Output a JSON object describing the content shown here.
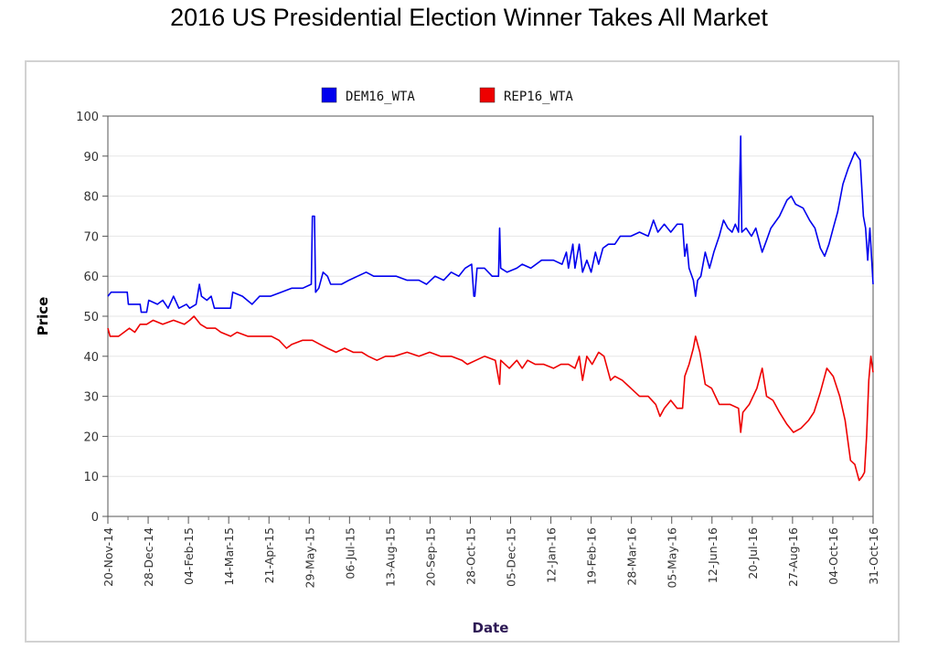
{
  "page": {
    "title": "2016 US Presidential Election Winner Takes All Market"
  },
  "chart_data": {
    "type": "line",
    "title": "2016 US Presidential Election Winner Takes All Market",
    "xlabel": "Date",
    "ylabel": "Price",
    "ylim": [
      0,
      100
    ],
    "yticks": [
      0,
      10,
      20,
      30,
      40,
      50,
      60,
      70,
      80,
      90,
      100
    ],
    "xlim": [
      "2014-11-20",
      "2016-10-31"
    ],
    "xtick_labels": [
      "20-Nov-14",
      "28-Dec-14",
      "04-Feb-15",
      "14-Mar-15",
      "21-Apr-15",
      "29-May-15",
      "06-Jul-15",
      "13-Aug-15",
      "20-Sep-15",
      "28-Oct-15",
      "05-Dec-15",
      "12-Jan-16",
      "19-Feb-16",
      "28-Mar-16",
      "05-May-16",
      "12-Jun-16",
      "20-Jul-16",
      "27-Aug-16",
      "04-Oct-16",
      "31-Oct-16"
    ],
    "grid": true,
    "legend_position": "top-center",
    "series": [
      {
        "name": "DEM16_WTA",
        "color": "#0000ee",
        "points": [
          [
            "2014-11-20",
            55
          ],
          [
            "2014-11-23",
            56
          ],
          [
            "2014-12-08",
            56
          ],
          [
            "2014-12-09",
            53
          ],
          [
            "2014-12-20",
            53
          ],
          [
            "2014-12-21",
            51
          ],
          [
            "2014-12-26",
            51
          ],
          [
            "2014-12-28",
            54
          ],
          [
            "2015-01-05",
            53
          ],
          [
            "2015-01-10",
            54
          ],
          [
            "2015-01-15",
            52
          ],
          [
            "2015-01-20",
            55
          ],
          [
            "2015-01-25",
            52
          ],
          [
            "2015-02-01",
            53
          ],
          [
            "2015-02-04",
            52
          ],
          [
            "2015-02-10",
            53
          ],
          [
            "2015-02-13",
            58
          ],
          [
            "2015-02-15",
            55
          ],
          [
            "2015-02-20",
            54
          ],
          [
            "2015-02-24",
            55
          ],
          [
            "2015-02-27",
            52
          ],
          [
            "2015-03-05",
            52
          ],
          [
            "2015-03-14",
            52
          ],
          [
            "2015-03-16",
            56
          ],
          [
            "2015-03-25",
            55
          ],
          [
            "2015-04-03",
            53
          ],
          [
            "2015-04-10",
            55
          ],
          [
            "2015-04-20",
            55
          ],
          [
            "2015-04-30",
            56
          ],
          [
            "2015-05-10",
            57
          ],
          [
            "2015-05-20",
            57
          ],
          [
            "2015-05-28",
            58
          ],
          [
            "2015-05-29",
            75
          ],
          [
            "2015-05-31",
            75
          ],
          [
            "2015-06-01",
            56
          ],
          [
            "2015-06-04",
            57
          ],
          [
            "2015-06-08",
            61
          ],
          [
            "2015-06-12",
            60
          ],
          [
            "2015-06-15",
            58
          ],
          [
            "2015-06-25",
            58
          ],
          [
            "2015-07-02",
            59
          ],
          [
            "2015-07-10",
            60
          ],
          [
            "2015-07-18",
            61
          ],
          [
            "2015-07-25",
            60
          ],
          [
            "2015-08-05",
            60
          ],
          [
            "2015-08-15",
            60
          ],
          [
            "2015-08-25",
            59
          ],
          [
            "2015-09-05",
            59
          ],
          [
            "2015-09-12",
            58
          ],
          [
            "2015-09-20",
            60
          ],
          [
            "2015-09-28",
            59
          ],
          [
            "2015-10-05",
            61
          ],
          [
            "2015-10-12",
            60
          ],
          [
            "2015-10-18",
            62
          ],
          [
            "2015-10-24",
            63
          ],
          [
            "2015-10-26",
            55
          ],
          [
            "2015-10-27",
            55
          ],
          [
            "2015-10-29",
            62
          ],
          [
            "2015-11-05",
            62
          ],
          [
            "2015-11-12",
            60
          ],
          [
            "2015-11-18",
            60
          ],
          [
            "2015-11-19",
            72
          ],
          [
            "2015-11-20",
            62
          ],
          [
            "2015-11-26",
            61
          ],
          [
            "2015-12-05",
            62
          ],
          [
            "2015-12-10",
            63
          ],
          [
            "2015-12-18",
            62
          ],
          [
            "2015-12-28",
            64
          ],
          [
            "2016-01-08",
            64
          ],
          [
            "2016-01-16",
            63
          ],
          [
            "2016-01-20",
            66
          ],
          [
            "2016-01-22",
            62
          ],
          [
            "2016-01-26",
            68
          ],
          [
            "2016-01-28",
            62
          ],
          [
            "2016-02-01",
            68
          ],
          [
            "2016-02-04",
            61
          ],
          [
            "2016-02-08",
            64
          ],
          [
            "2016-02-12",
            61
          ],
          [
            "2016-02-16",
            66
          ],
          [
            "2016-02-19",
            63
          ],
          [
            "2016-02-23",
            67
          ],
          [
            "2016-02-28",
            68
          ],
          [
            "2016-03-05",
            68
          ],
          [
            "2016-03-10",
            70
          ],
          [
            "2016-03-20",
            70
          ],
          [
            "2016-03-28",
            71
          ],
          [
            "2016-04-05",
            70
          ],
          [
            "2016-04-10",
            74
          ],
          [
            "2016-04-14",
            71
          ],
          [
            "2016-04-20",
            73
          ],
          [
            "2016-04-26",
            71
          ],
          [
            "2016-05-02",
            73
          ],
          [
            "2016-05-07",
            73
          ],
          [
            "2016-05-09",
            65
          ],
          [
            "2016-05-11",
            68
          ],
          [
            "2016-05-13",
            62
          ],
          [
            "2016-05-17",
            59
          ],
          [
            "2016-05-19",
            55
          ],
          [
            "2016-05-21",
            59
          ],
          [
            "2016-05-24",
            60
          ],
          [
            "2016-05-28",
            66
          ],
          [
            "2016-06-01",
            62
          ],
          [
            "2016-06-05",
            66
          ],
          [
            "2016-06-10",
            70
          ],
          [
            "2016-06-14",
            74
          ],
          [
            "2016-06-18",
            72
          ],
          [
            "2016-06-22",
            71
          ],
          [
            "2016-06-25",
            73
          ],
          [
            "2016-06-28",
            71
          ],
          [
            "2016-06-30",
            95
          ],
          [
            "2016-07-01",
            71
          ],
          [
            "2016-07-05",
            72
          ],
          [
            "2016-07-10",
            70
          ],
          [
            "2016-07-14",
            72
          ],
          [
            "2016-07-20",
            66
          ],
          [
            "2016-07-24",
            69
          ],
          [
            "2016-07-28",
            72
          ],
          [
            "2016-08-05",
            75
          ],
          [
            "2016-08-12",
            79
          ],
          [
            "2016-08-16",
            80
          ],
          [
            "2016-08-20",
            78
          ],
          [
            "2016-08-27",
            77
          ],
          [
            "2016-09-02",
            74
          ],
          [
            "2016-09-07",
            72
          ],
          [
            "2016-09-12",
            67
          ],
          [
            "2016-09-16",
            65
          ],
          [
            "2016-09-20",
            68
          ],
          [
            "2016-09-24",
            72
          ],
          [
            "2016-09-28",
            76
          ],
          [
            "2016-10-03",
            83
          ],
          [
            "2016-10-08",
            87
          ],
          [
            "2016-10-14",
            91
          ],
          [
            "2016-10-19",
            89
          ],
          [
            "2016-10-22",
            75
          ],
          [
            "2016-10-24",
            72
          ],
          [
            "2016-10-26",
            64
          ],
          [
            "2016-10-28",
            72
          ],
          [
            "2016-10-31",
            58
          ]
        ]
      },
      {
        "name": "REP16_WTA",
        "color": "#ee0000",
        "points": [
          [
            "2014-11-20",
            47
          ],
          [
            "2014-11-22",
            45
          ],
          [
            "2014-11-30",
            45
          ],
          [
            "2014-12-05",
            46
          ],
          [
            "2014-12-10",
            47
          ],
          [
            "2014-12-15",
            46
          ],
          [
            "2014-12-20",
            48
          ],
          [
            "2014-12-26",
            48
          ],
          [
            "2015-01-01",
            49
          ],
          [
            "2015-01-10",
            48
          ],
          [
            "2015-01-20",
            49
          ],
          [
            "2015-01-30",
            48
          ],
          [
            "2015-02-04",
            49
          ],
          [
            "2015-02-08",
            50
          ],
          [
            "2015-02-14",
            48
          ],
          [
            "2015-02-20",
            47
          ],
          [
            "2015-02-28",
            47
          ],
          [
            "2015-03-05",
            46
          ],
          [
            "2015-03-14",
            45
          ],
          [
            "2015-03-20",
            46
          ],
          [
            "2015-03-30",
            45
          ],
          [
            "2015-04-10",
            45
          ],
          [
            "2015-04-21",
            45
          ],
          [
            "2015-04-28",
            44
          ],
          [
            "2015-05-05",
            42
          ],
          [
            "2015-05-10",
            43
          ],
          [
            "2015-05-20",
            44
          ],
          [
            "2015-05-29",
            44
          ],
          [
            "2015-06-05",
            43
          ],
          [
            "2015-06-12",
            42
          ],
          [
            "2015-06-20",
            41
          ],
          [
            "2015-06-28",
            42
          ],
          [
            "2015-07-06",
            41
          ],
          [
            "2015-07-14",
            41
          ],
          [
            "2015-07-20",
            40
          ],
          [
            "2015-07-28",
            39
          ],
          [
            "2015-08-05",
            40
          ],
          [
            "2015-08-13",
            40
          ],
          [
            "2015-08-25",
            41
          ],
          [
            "2015-09-05",
            40
          ],
          [
            "2015-09-15",
            41
          ],
          [
            "2015-09-25",
            40
          ],
          [
            "2015-10-05",
            40
          ],
          [
            "2015-10-15",
            39
          ],
          [
            "2015-10-20",
            38
          ],
          [
            "2015-10-28",
            39
          ],
          [
            "2015-11-05",
            40
          ],
          [
            "2015-11-15",
            39
          ],
          [
            "2015-11-19",
            33
          ],
          [
            "2015-11-20",
            39
          ],
          [
            "2015-11-28",
            37
          ],
          [
            "2015-12-05",
            39
          ],
          [
            "2015-12-10",
            37
          ],
          [
            "2015-12-15",
            39
          ],
          [
            "2015-12-22",
            38
          ],
          [
            "2015-12-30",
            38
          ],
          [
            "2016-01-08",
            37
          ],
          [
            "2016-01-15",
            38
          ],
          [
            "2016-01-22",
            38
          ],
          [
            "2016-01-28",
            37
          ],
          [
            "2016-02-01",
            40
          ],
          [
            "2016-02-04",
            34
          ],
          [
            "2016-02-08",
            40
          ],
          [
            "2016-02-13",
            38
          ],
          [
            "2016-02-19",
            41
          ],
          [
            "2016-02-24",
            40
          ],
          [
            "2016-03-01",
            34
          ],
          [
            "2016-03-05",
            35
          ],
          [
            "2016-03-12",
            34
          ],
          [
            "2016-03-20",
            32
          ],
          [
            "2016-03-28",
            30
          ],
          [
            "2016-04-05",
            30
          ],
          [
            "2016-04-12",
            28
          ],
          [
            "2016-04-16",
            25
          ],
          [
            "2016-04-20",
            27
          ],
          [
            "2016-04-26",
            29
          ],
          [
            "2016-05-02",
            27
          ],
          [
            "2016-05-07",
            27
          ],
          [
            "2016-05-09",
            35
          ],
          [
            "2016-05-13",
            38
          ],
          [
            "2016-05-17",
            42
          ],
          [
            "2016-05-19",
            45
          ],
          [
            "2016-05-23",
            41
          ],
          [
            "2016-05-28",
            33
          ],
          [
            "2016-06-03",
            32
          ],
          [
            "2016-06-10",
            28
          ],
          [
            "2016-06-20",
            28
          ],
          [
            "2016-06-28",
            27
          ],
          [
            "2016-06-30",
            21
          ],
          [
            "2016-07-02",
            26
          ],
          [
            "2016-07-08",
            28
          ],
          [
            "2016-07-15",
            32
          ],
          [
            "2016-07-20",
            37
          ],
          [
            "2016-07-24",
            30
          ],
          [
            "2016-07-30",
            29
          ],
          [
            "2016-08-05",
            26
          ],
          [
            "2016-08-12",
            23
          ],
          [
            "2016-08-18",
            21
          ],
          [
            "2016-08-25",
            22
          ],
          [
            "2016-09-01",
            24
          ],
          [
            "2016-09-06",
            26
          ],
          [
            "2016-09-12",
            31
          ],
          [
            "2016-09-18",
            37
          ],
          [
            "2016-09-24",
            35
          ],
          [
            "2016-09-30",
            30
          ],
          [
            "2016-10-05",
            24
          ],
          [
            "2016-10-10",
            14
          ],
          [
            "2016-10-14",
            13
          ],
          [
            "2016-10-18",
            9
          ],
          [
            "2016-10-21",
            10
          ],
          [
            "2016-10-23",
            11
          ],
          [
            "2016-10-25",
            20
          ],
          [
            "2016-10-27",
            34
          ],
          [
            "2016-10-29",
            40
          ],
          [
            "2016-10-31",
            36
          ]
        ]
      }
    ]
  }
}
